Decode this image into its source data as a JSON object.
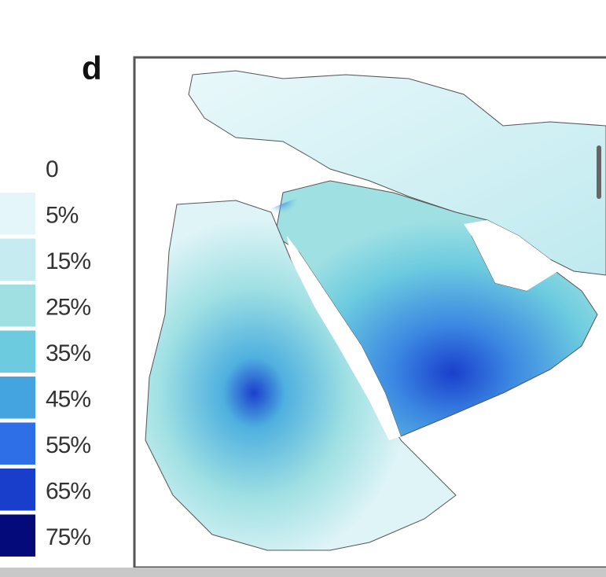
{
  "panel": {
    "label": "d"
  },
  "legend": {
    "labels": [
      "0",
      "5%",
      "15%",
      "25%",
      "35%",
      "45%",
      "55%",
      "65%",
      "75%"
    ],
    "colors": [
      "#e4f6f9",
      "#c6ecf1",
      "#a0e0e2",
      "#6ccbdf",
      "#44a4e0",
      "#2e6ee6",
      "#183ecb",
      "#050a7a"
    ]
  }
}
